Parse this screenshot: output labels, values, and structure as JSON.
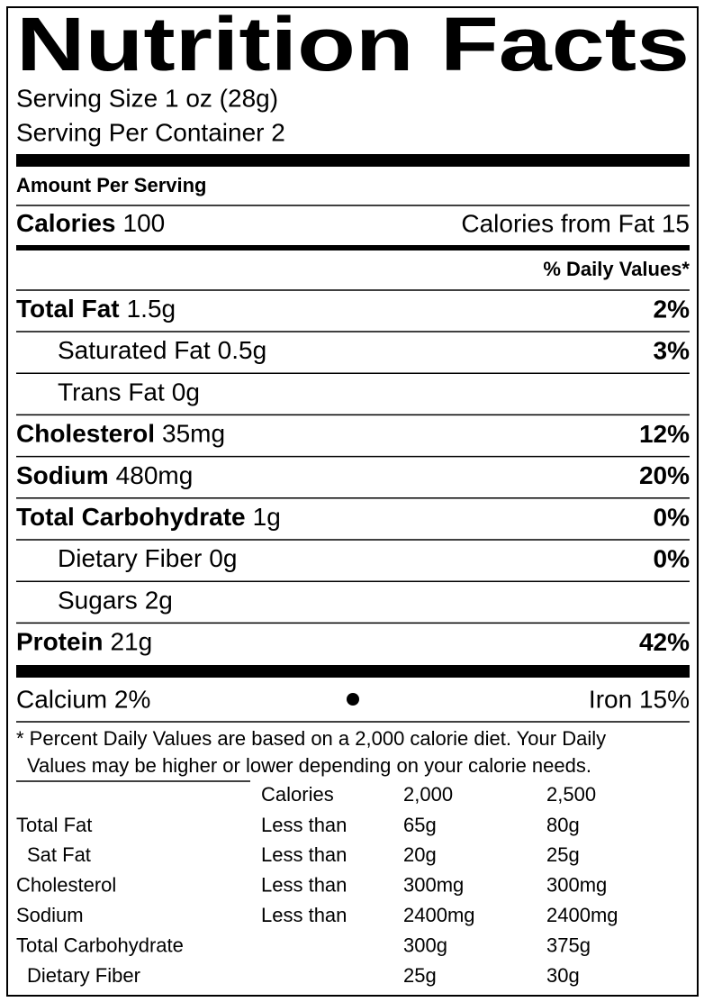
{
  "title": "Nutrition Facts",
  "serving_size": "Serving Size 1 oz (28g)",
  "servings": "Serving Per Container 2",
  "amount_per_serving": "Amount Per Serving",
  "calories": {
    "label": "Calories",
    "value": "100",
    "from_fat": "Calories from Fat 15"
  },
  "daily_values_header": "% Daily Values*",
  "nutrients": [
    {
      "label": "Total Fat",
      "amount": "1.5g",
      "dv": "2%",
      "bold": true
    },
    {
      "label": "Saturated Fat",
      "amount": "0.5g",
      "dv": "3%",
      "bold": false
    },
    {
      "label": "Trans Fat",
      "amount": "0g",
      "bold": false
    },
    {
      "label": "Cholesterol",
      "amount": "35mg",
      "dv": "12%",
      "bold": true
    },
    {
      "label": "Sodium",
      "amount": "480mg",
      "dv": "20%",
      "bold": true
    },
    {
      "label": "Total Carbohydrate",
      "amount": "1g",
      "dv": "0%",
      "bold": true
    },
    {
      "label": "Dietary Fiber",
      "amount": "0g",
      "dv": "0%",
      "bold": false
    },
    {
      "label": "Sugars",
      "amount": "2g",
      "bold": false
    },
    {
      "label": "Protein",
      "amount": "21g",
      "dv": "42%",
      "bold": true
    }
  ],
  "vitamins": [
    "Calcium 2%",
    "Iron 15%"
  ],
  "footnote": [
    "* Percent Daily Values are based on a 2,000 calorie diet. Your Daily",
    "Values may be higher or lower depending on your calorie needs."
  ],
  "table": {
    "columns": [
      "Calories",
      "2,000",
      "2,500"
    ],
    "rows": [
      {
        "nutrient": "Total Fat",
        "condition": "Less than",
        "v2000": "65g",
        "v2500": "80g",
        "indent": false
      },
      {
        "nutrient": "Sat Fat",
        "condition": "Less than",
        "v2000": "20g",
        "v2500": "25g",
        "indent": true
      },
      {
        "nutrient": "Cholesterol",
        "condition": "Less than",
        "v2000": "300mg",
        "v2500": "300mg",
        "indent": false
      },
      {
        "nutrient": "Sodium",
        "condition": "Less than",
        "v2000": "2400mg",
        "v2500": "2400mg",
        "indent": false
      },
      {
        "nutrient": "Total Carbohydrate",
        "v2000": "300g",
        "v2500": "375g",
        "indent": false
      },
      {
        "nutrient": "Dietary Fiber",
        "v2000": "25g",
        "v2500": "30g",
        "indent": true
      }
    ]
  }
}
